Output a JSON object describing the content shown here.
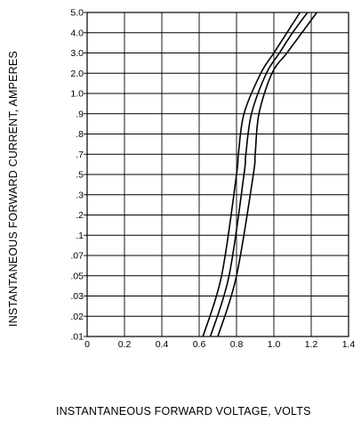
{
  "chart_data": {
    "type": "line",
    "title": "",
    "xlabel": "INSTANTANEOUS FORWARD VOLTAGE, VOLTS",
    "ylabel": "INSTANTANEOUS FORWARD CURRENT, AMPERES",
    "xlim": [
      0,
      1.4
    ],
    "ylim": [
      0.01,
      5.0
    ],
    "grid": true,
    "x_ticks": [
      {
        "value": 0,
        "label": "0"
      },
      {
        "value": 0.2,
        "label": "0.2"
      },
      {
        "value": 0.4,
        "label": "0.4"
      },
      {
        "value": 0.6,
        "label": "0.6"
      },
      {
        "value": 0.8,
        "label": "0.8"
      },
      {
        "value": 1.0,
        "label": "1.0"
      },
      {
        "value": 1.2,
        "label": "1.2"
      },
      {
        "value": 1.4,
        "label": "1.4"
      }
    ],
    "y_ticks": [
      {
        "value": 5.0,
        "label": "5.0"
      },
      {
        "value": 4.0,
        "label": "4.0"
      },
      {
        "value": 3.0,
        "label": "3.0"
      },
      {
        "value": 2.0,
        "label": "2.0"
      },
      {
        "value": 1.0,
        "label": "1.0"
      },
      {
        "value": 0.9,
        "label": ".9"
      },
      {
        "value": 0.8,
        "label": ".8"
      },
      {
        "value": 0.7,
        "label": ".7"
      },
      {
        "value": 0.5,
        "label": ".5"
      },
      {
        "value": 0.3,
        "label": ".3"
      },
      {
        "value": 0.2,
        "label": ".2"
      },
      {
        "value": 0.1,
        "label": ".1"
      },
      {
        "value": 0.07,
        "label": ".07"
      },
      {
        "value": 0.05,
        "label": ".05"
      },
      {
        "value": 0.03,
        "label": ".03"
      },
      {
        "value": 0.02,
        "label": ".02"
      },
      {
        "value": 0.01,
        "label": ".01"
      }
    ],
    "series": [
      {
        "points": [
          [
            0.62,
            0.01
          ],
          [
            0.72,
            0.05
          ],
          [
            0.8,
            0.5
          ],
          [
            0.81,
            0.7
          ],
          [
            0.84,
            0.9
          ],
          [
            0.93,
            2.0
          ],
          [
            1.0,
            3.0
          ],
          [
            1.07,
            4.0
          ],
          [
            1.14,
            5.0
          ]
        ]
      },
      {
        "points": [
          [
            0.66,
            0.01
          ],
          [
            0.76,
            0.05
          ],
          [
            0.84,
            0.5
          ],
          [
            0.85,
            0.7
          ],
          [
            0.88,
            0.9
          ],
          [
            0.96,
            2.0
          ],
          [
            1.03,
            3.0
          ],
          [
            1.1,
            4.0
          ],
          [
            1.18,
            5.0
          ]
        ]
      },
      {
        "points": [
          [
            0.7,
            0.01
          ],
          [
            0.8,
            0.05
          ],
          [
            0.89,
            0.5
          ],
          [
            0.9,
            0.7
          ],
          [
            0.92,
            0.9
          ],
          [
            0.99,
            2.0
          ],
          [
            1.07,
            3.0
          ],
          [
            1.15,
            4.0
          ],
          [
            1.23,
            5.0
          ]
        ]
      }
    ]
  }
}
